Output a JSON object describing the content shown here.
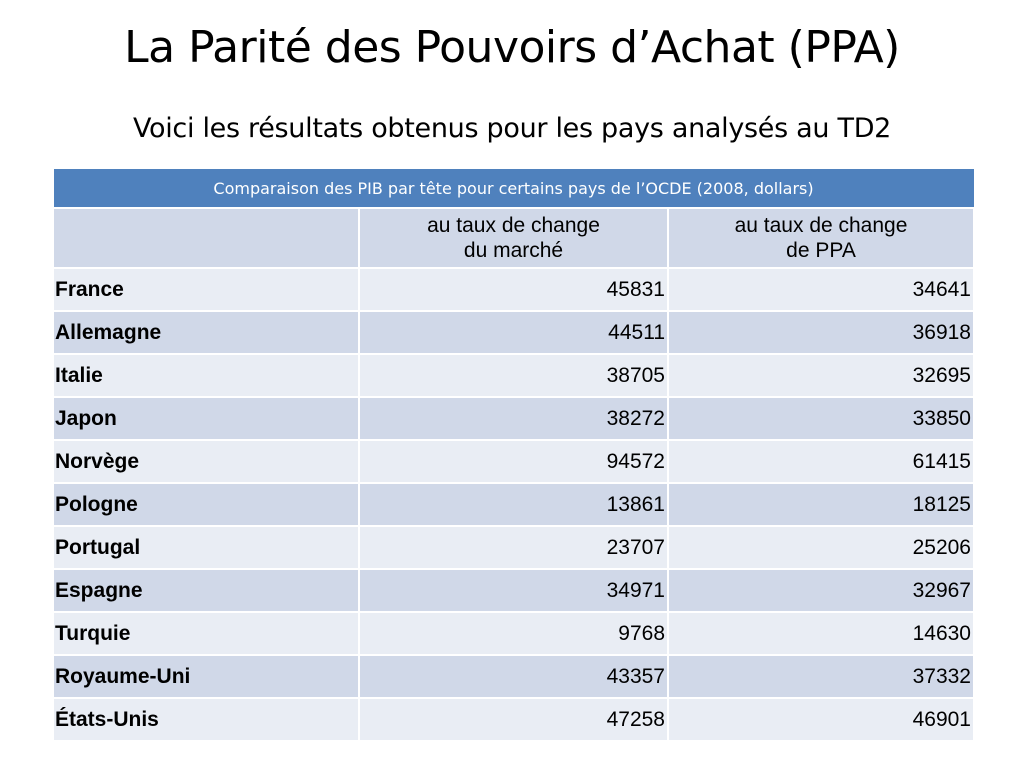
{
  "slide": {
    "title": "La Parité des Pouvoirs d’Achat (PPA)",
    "subtitle": "Voici les résultats obtenus pour les pays analysés au TD2"
  },
  "table": {
    "caption": "Comparaison des PIB par tête pour certains pays de l’OCDE (2008, dollars)",
    "columns": [
      {
        "line1": "",
        "line2": ""
      },
      {
        "line1": "au taux de change",
        "line2": "du marché"
      },
      {
        "line1": "au taux de change",
        "line2": "de PPA"
      }
    ],
    "rows": [
      {
        "country": "France",
        "market": "45831",
        "ppa": "34641"
      },
      {
        "country": "Allemagne",
        "market": "44511",
        "ppa": "36918"
      },
      {
        "country": "Italie",
        "market": "38705",
        "ppa": "32695"
      },
      {
        "country": "Japon",
        "market": "38272",
        "ppa": "33850"
      },
      {
        "country": "Norvège",
        "market": "94572",
        "ppa": "61415"
      },
      {
        "country": "Pologne",
        "market": "13861",
        "ppa": "18125"
      },
      {
        "country": "Portugal",
        "market": "23707",
        "ppa": "25206"
      },
      {
        "country": "Espagne",
        "market": "34971",
        "ppa": "32967"
      },
      {
        "country": "Turquie",
        "market": "9768",
        "ppa": "14630"
      },
      {
        "country": "Royaume-Uni",
        "market": "43357",
        "ppa": "37332"
      },
      {
        "country": "États-Unis",
        "market": "47258",
        "ppa": "46901"
      }
    ]
  },
  "colors": {
    "caption_bg": "#4f81bd",
    "header_bg": "#d0d8e8",
    "row_light": "#e9edf4",
    "row_dark": "#d0d8e8"
  }
}
